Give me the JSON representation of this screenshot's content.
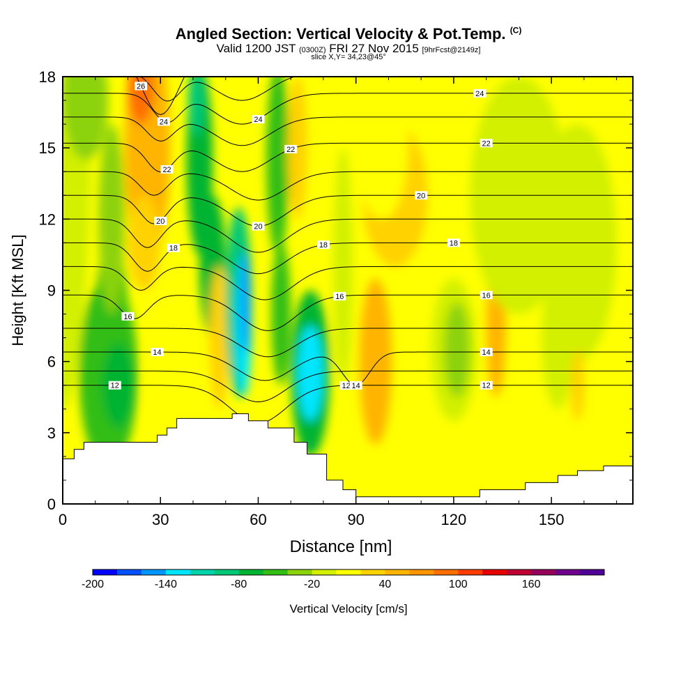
{
  "header": {
    "title": "Angled Section: Vertical Velocity & Pot.Temp.",
    "title_tag": "(C)",
    "valid_prefix": "Valid 1200 JST",
    "valid_utc": "(0300Z)",
    "valid_date": "FRI 27 Nov 2015",
    "forecast_tag": "[9hrFcst@2149z]",
    "slice": "slice X,Y= 34,23@45°"
  },
  "chart_data": {
    "type": "heatmap",
    "xlabel": "Distance [nm]",
    "ylabel": "Height [Kft MSL]",
    "xlim": [
      0,
      175
    ],
    "ylim": [
      0,
      18
    ],
    "x_ticks": [
      "0",
      "30",
      "60",
      "90",
      "120",
      "150"
    ],
    "y_ticks": [
      "0",
      "3",
      "6",
      "9",
      "12",
      "15",
      "18"
    ],
    "colorbar": {
      "label": "Vertical Velocity [cm/s]",
      "tick_labels": [
        "-200",
        "-140",
        "-80",
        "-20",
        "40",
        "100",
        "160"
      ],
      "tick_values": [
        -200,
        -140,
        -80,
        -20,
        40,
        100,
        160
      ],
      "colors": [
        "#0000ff",
        "#0050ff",
        "#0096ff",
        "#00e6ff",
        "#00d2aa",
        "#00c878",
        "#00b432",
        "#32be14",
        "#8cd20a",
        "#d2f000",
        "#ffff00",
        "#ffd200",
        "#ffb400",
        "#ff9600",
        "#ff6e00",
        "#ff3c00",
        "#e60000",
        "#be0032",
        "#96005a",
        "#6e008c",
        "#500096"
      ]
    },
    "terrain_profile": {
      "x": [
        0,
        3.5,
        3.5,
        6.5,
        6.5,
        29,
        29,
        32,
        32,
        35,
        35,
        52,
        52,
        57,
        57,
        63,
        63,
        71,
        71,
        75,
        75,
        81,
        81,
        86,
        86,
        90,
        90,
        128,
        128,
        142,
        142,
        152,
        152,
        158,
        158,
        166,
        166,
        175
      ],
      "y": [
        1.9,
        1.9,
        2.3,
        2.3,
        2.6,
        2.6,
        2.9,
        2.9,
        3.2,
        3.2,
        3.6,
        3.6,
        3.8,
        3.8,
        3.5,
        3.5,
        3.2,
        3.2,
        2.6,
        2.6,
        2.1,
        2.1,
        1.0,
        1.0,
        0.6,
        0.6,
        0.3,
        0.3,
        0.6,
        0.6,
        0.9,
        0.9,
        1.2,
        1.2,
        1.4,
        1.4,
        1.6,
        1.6
      ]
    },
    "velocity_cells": [
      {
        "x": 0,
        "y": 18,
        "rx": 9,
        "ry": 14,
        "value": -10
      },
      {
        "x": 7,
        "y": 17,
        "rx": 7,
        "ry": 2.5,
        "value": -30
      },
      {
        "x": 14,
        "y": 5.5,
        "rx": 9,
        "ry": 4,
        "value": -60
      },
      {
        "x": 15,
        "y": 8,
        "rx": 5,
        "ry": 3,
        "value": -60
      },
      {
        "x": 17,
        "y": 5,
        "rx": 5,
        "ry": 1.8,
        "value": -80
      },
      {
        "x": 15,
        "y": 12,
        "rx": 4,
        "ry": 4,
        "value": -30
      },
      {
        "x": 26,
        "y": 15,
        "rx": 7,
        "ry": 5,
        "value": 40
      },
      {
        "x": 24,
        "y": 17.5,
        "rx": 4,
        "ry": 1.5,
        "value": 80
      },
      {
        "x": 25,
        "y": 11,
        "rx": 5,
        "ry": 2,
        "value": 20
      },
      {
        "x": 30,
        "y": 5,
        "rx": 4,
        "ry": 3,
        "value": 10
      },
      {
        "x": 42,
        "y": 14.5,
        "rx": 4,
        "ry": 4,
        "value": -80
      },
      {
        "x": 46,
        "y": 10,
        "rx": 4,
        "ry": 3,
        "value": -70
      },
      {
        "x": 41,
        "y": 17,
        "rx": 2.5,
        "ry": 1.5,
        "value": -100
      },
      {
        "x": 48,
        "y": 7,
        "rx": 3,
        "ry": 3,
        "value": 20
      },
      {
        "x": 54,
        "y": 8.5,
        "rx": 4,
        "ry": 4,
        "value": -90
      },
      {
        "x": 55.5,
        "y": 7.5,
        "rx": 2.5,
        "ry": 3,
        "value": -130
      },
      {
        "x": 56,
        "y": 8.5,
        "rx": 1.5,
        "ry": 2.2,
        "value": -160
      },
      {
        "x": 66,
        "y": 14.5,
        "rx": 3.5,
        "ry": 4,
        "value": -60
      },
      {
        "x": 67,
        "y": 8,
        "rx": 3,
        "ry": 3,
        "value": -50
      },
      {
        "x": 76,
        "y": 5.5,
        "rx": 6,
        "ry": 3.5,
        "value": -70
      },
      {
        "x": 76,
        "y": 5.5,
        "rx": 4,
        "ry": 2,
        "value": -130
      },
      {
        "x": 72,
        "y": 15,
        "rx": 3,
        "ry": 3,
        "value": 20
      },
      {
        "x": 86,
        "y": 10,
        "rx": 3,
        "ry": 5,
        "value": -10
      },
      {
        "x": 96,
        "y": 6,
        "rx": 5,
        "ry": 3.5,
        "value": 40
      },
      {
        "x": 102,
        "y": 13,
        "rx": 10,
        "ry": 3,
        "value": 25
      },
      {
        "x": 98,
        "y": 15,
        "rx": 8,
        "ry": 3,
        "value": 10
      },
      {
        "x": 120,
        "y": 6.5,
        "rx": 7,
        "ry": 3,
        "value": -20
      },
      {
        "x": 121,
        "y": 6.5,
        "rx": 4,
        "ry": 2,
        "value": -30
      },
      {
        "x": 133,
        "y": 7.5,
        "rx": 3,
        "ry": 3,
        "value": 40
      },
      {
        "x": 140,
        "y": 13,
        "rx": 15,
        "ry": 5,
        "value": -15
      },
      {
        "x": 158,
        "y": 11,
        "rx": 12,
        "ry": 5,
        "value": -15
      },
      {
        "x": 152,
        "y": 7,
        "rx": 5,
        "ry": 3,
        "value": -20
      },
      {
        "x": 158,
        "y": 5,
        "rx": 2,
        "ry": 1.5,
        "value": 30
      }
    ],
    "theta_contours": [
      {
        "level": 12,
        "y0": 5.0,
        "dips": [
          [
            60,
            1.6,
            12
          ]
        ],
        "label": "12",
        "labels_at": [
          16,
          130,
          87
        ]
      },
      {
        "level": 13,
        "y0": 5.6,
        "dips": [
          [
            60,
            1.3,
            12
          ]
        ]
      },
      {
        "level": 14,
        "y0": 6.4,
        "dips": [
          [
            62,
            1.2,
            12
          ],
          [
            90,
            1.4,
            6
          ]
        ],
        "label": "14",
        "labels_at": [
          29,
          130,
          90
        ]
      },
      {
        "level": 15,
        "y0": 7.4,
        "dips": [
          [
            63,
            1.2,
            12
          ]
        ]
      },
      {
        "level": 16,
        "y0": 8.8,
        "dips": [
          [
            63,
            1.5,
            12
          ],
          [
            22,
            1.0,
            6
          ]
        ],
        "label": "16",
        "labels_at": [
          20,
          130,
          85
        ]
      },
      {
        "level": 17,
        "y0": 10.0,
        "dips": [
          [
            62,
            1.4,
            12
          ],
          [
            24,
            1.0,
            6
          ]
        ]
      },
      {
        "level": 18,
        "y0": 11.0,
        "dips": [
          [
            60,
            1.3,
            12
          ],
          [
            26,
            1.2,
            6
          ]
        ],
        "label": "18",
        "labels_at": [
          34,
          120,
          80
        ]
      },
      {
        "level": 19,
        "y0": 12.0,
        "dips": [
          [
            60,
            1.4,
            12
          ],
          [
            26,
            1.2,
            6
          ]
        ]
      },
      {
        "level": 20,
        "y0": 13.0,
        "dips": [
          [
            60,
            1.3,
            12
          ],
          [
            28,
            1.2,
            6
          ]
        ],
        "label": "20",
        "labels_at": [
          30,
          110,
          60
        ]
      },
      {
        "level": 21,
        "y0": 14.0,
        "dips": [
          [
            60,
            1.2,
            12
          ],
          [
            28,
            1.0,
            6
          ]
        ]
      },
      {
        "level": 22,
        "y0": 15.2,
        "dips": [
          [
            55,
            1.2,
            12
          ],
          [
            30,
            1.2,
            6
          ]
        ],
        "label": "22",
        "labels_at": [
          32,
          130,
          70
        ]
      },
      {
        "level": 23,
        "y0": 16.3,
        "dips": [
          [
            55,
            1.2,
            12
          ],
          [
            30,
            1.0,
            6
          ]
        ]
      },
      {
        "level": 24,
        "y0": 17.3,
        "dips": [
          [
            55,
            1.3,
            12
          ],
          [
            32,
            1.2,
            6
          ]
        ],
        "label": "24",
        "labels_at": [
          31,
          128,
          60
        ]
      },
      {
        "level": 25,
        "y0": 18.2,
        "dips": [
          [
            55,
            1.2,
            12
          ],
          [
            32,
            1.2,
            6
          ]
        ]
      },
      {
        "level": 26,
        "y0": 19.2,
        "dips": [
          [
            30,
            2.8,
            8
          ]
        ],
        "label": "26",
        "labels_at": [
          24
        ]
      }
    ]
  }
}
